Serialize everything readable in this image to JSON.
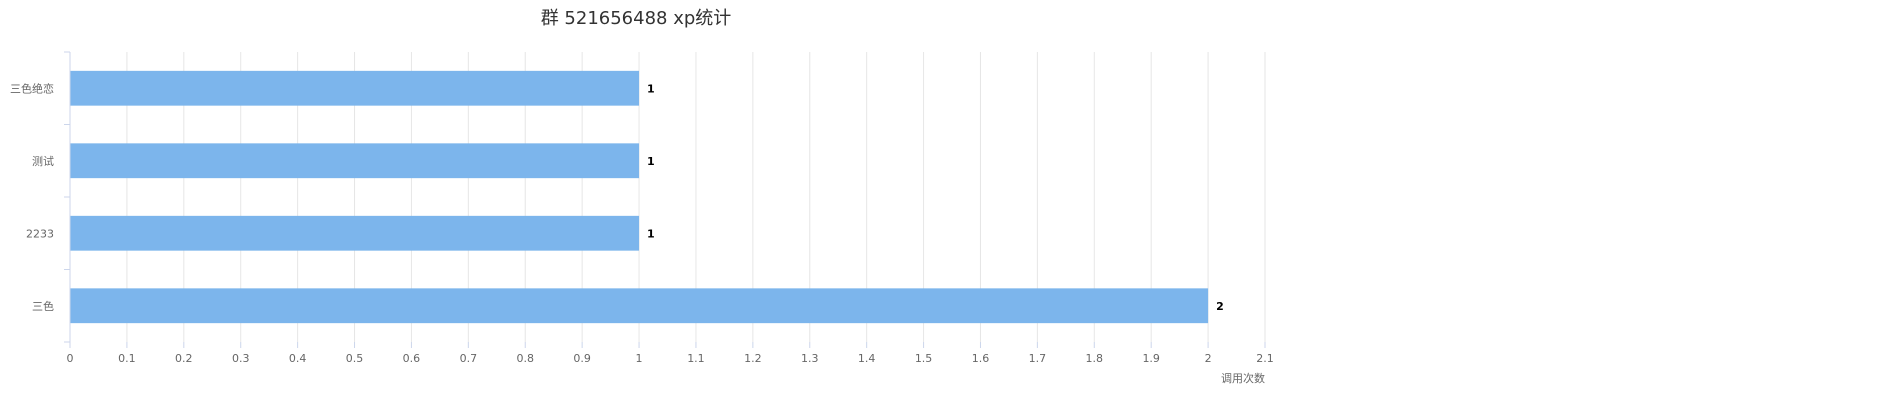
{
  "chart_data": {
    "type": "bar",
    "orientation": "horizontal",
    "title": "群 521656488 xp统计",
    "xlabel": "调用次数",
    "ylabel": "",
    "categories": [
      "三色绝恋",
      "测试",
      "2233",
      "三色"
    ],
    "values": [
      1,
      1,
      1,
      2
    ],
    "xlim": [
      0,
      2.1
    ],
    "xticks": [
      "0",
      "0.1",
      "0.2",
      "0.3",
      "0.4",
      "0.5",
      "0.6",
      "0.7",
      "0.8",
      "0.9",
      "1",
      "1.1",
      "1.2",
      "1.3",
      "1.4",
      "1.5",
      "1.6",
      "1.7",
      "1.8",
      "1.9",
      "2",
      "2.1"
    ],
    "grid": true,
    "legend": "none",
    "data_labels": [
      "1",
      "1",
      "1",
      "2"
    ],
    "colors": {
      "bar": "#7cb5ec",
      "grid": "#e6e6e6",
      "axis": "#ccd6eb"
    }
  }
}
